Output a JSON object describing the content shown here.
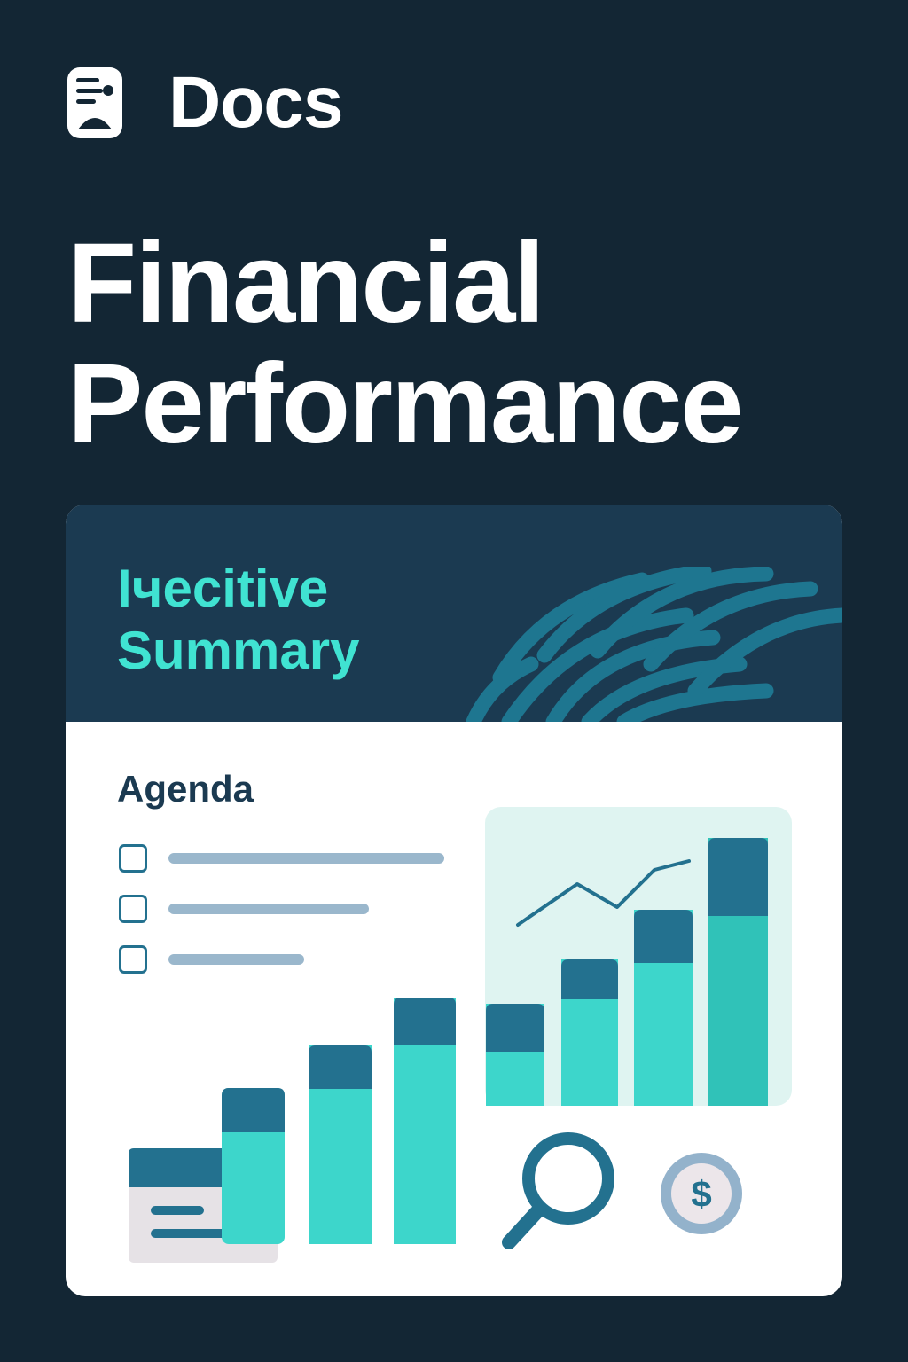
{
  "brand": {
    "name": "Docs",
    "icon": "document-icon"
  },
  "title": {
    "line1": "Financial",
    "line2": "Performance"
  },
  "card": {
    "header": {
      "line1": "Iчecitive",
      "line2": "Summary"
    },
    "agenda": {
      "label": "Agenda",
      "items": [
        {
          "checked": false,
          "fill": 0.9
        },
        {
          "checked": false,
          "fill": 0.65
        },
        {
          "checked": false,
          "fill": 0.44
        }
      ]
    },
    "icons": [
      "magnifier-icon",
      "dollar-coin-icon"
    ],
    "coin_symbol": "$"
  },
  "colors": {
    "background": "#132634",
    "header": "#1b3a51",
    "accent_teal": "#3dd6cb",
    "bar_cap": "#23718f",
    "agenda_line": "#9ab7cc",
    "panel": "#dff4f1"
  }
}
